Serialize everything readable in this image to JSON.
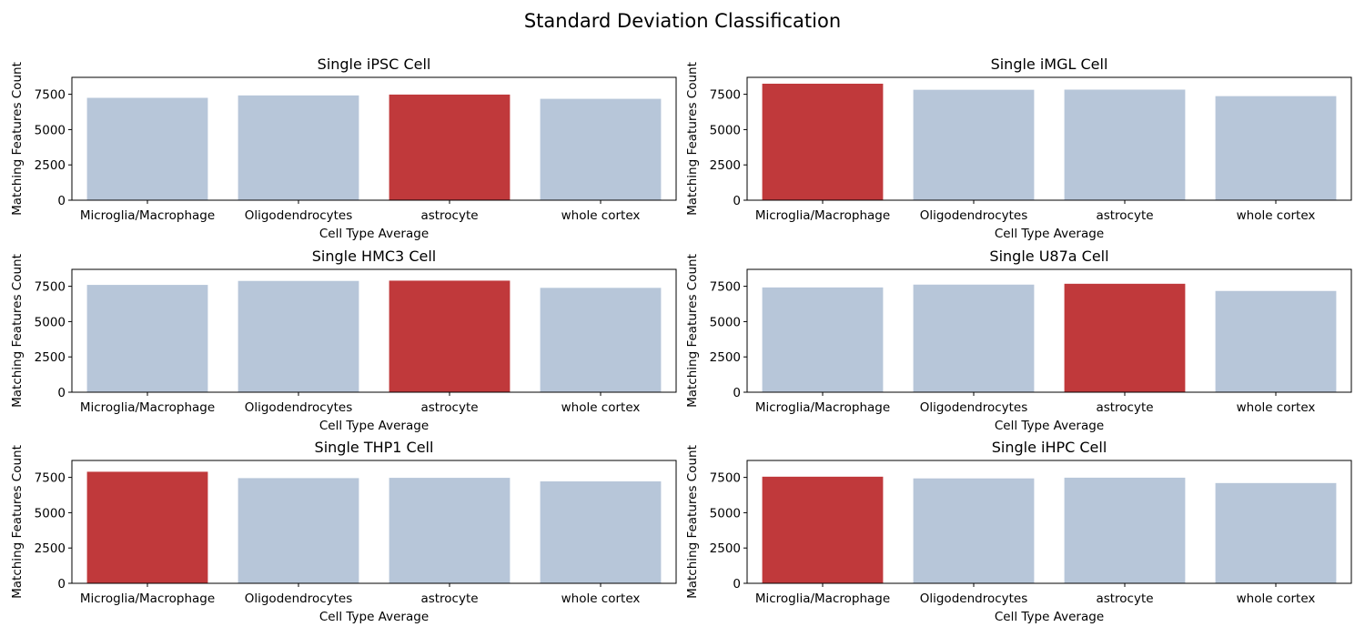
{
  "figure": {
    "suptitle": "Standard Deviation Classification"
  },
  "colors": {
    "default_bar": "#b7c6d9",
    "highlight_bar": "#c0393b"
  },
  "chart_data": [
    {
      "type": "bar",
      "title": "Single iPSC Cell",
      "xlabel": "Cell Type Average",
      "ylabel": "Matching Features Count",
      "categories": [
        "Microglia/Macrophage",
        "Oligodendrocytes",
        "astrocyte",
        "whole cortex"
      ],
      "values": [
        7250,
        7420,
        7480,
        7180
      ],
      "highlight": [
        false,
        false,
        true,
        false
      ],
      "ylim": [
        0,
        8700
      ],
      "yticks": [
        0,
        2500,
        5000,
        7500
      ],
      "ytick_labels": [
        "0",
        "2500",
        "5000",
        "7500"
      ]
    },
    {
      "type": "bar",
      "title": "Single iMGL Cell",
      "xlabel": "Cell Type Average",
      "ylabel": "Matching Features Count",
      "categories": [
        "Microglia/Macrophage",
        "Oligodendrocytes",
        "astrocyte",
        "whole cortex"
      ],
      "values": [
        8250,
        7820,
        7830,
        7370
      ],
      "highlight": [
        true,
        false,
        false,
        false
      ],
      "ylim": [
        0,
        8700
      ],
      "yticks": [
        0,
        2500,
        5000,
        7500
      ],
      "ytick_labels": [
        "0",
        "2500",
        "5000",
        "7500"
      ]
    },
    {
      "type": "bar",
      "title": "Single HMC3 Cell",
      "xlabel": "Cell Type Average",
      "ylabel": "Matching Features Count",
      "categories": [
        "Microglia/Macrophage",
        "Oligodendrocytes",
        "astrocyte",
        "whole cortex"
      ],
      "values": [
        7600,
        7880,
        7900,
        7390
      ],
      "highlight": [
        false,
        false,
        true,
        false
      ],
      "ylim": [
        0,
        8700
      ],
      "yticks": [
        0,
        2500,
        5000,
        7500
      ],
      "ytick_labels": [
        "0",
        "2500",
        "5000",
        "7500"
      ]
    },
    {
      "type": "bar",
      "title": "Single U87a Cell",
      "xlabel": "Cell Type Average",
      "ylabel": "Matching Features Count",
      "categories": [
        "Microglia/Macrophage",
        "Oligodendrocytes",
        "astrocyte",
        "whole cortex"
      ],
      "values": [
        7420,
        7620,
        7680,
        7170
      ],
      "highlight": [
        false,
        false,
        true,
        false
      ],
      "ylim": [
        0,
        8700
      ],
      "yticks": [
        0,
        2500,
        5000,
        7500
      ],
      "ytick_labels": [
        "0",
        "2500",
        "5000",
        "7500"
      ]
    },
    {
      "type": "bar",
      "title": "Single THP1 Cell",
      "xlabel": "Cell Type Average",
      "ylabel": "Matching Features Count",
      "categories": [
        "Microglia/Macrophage",
        "Oligodendrocytes",
        "astrocyte",
        "whole cortex"
      ],
      "values": [
        7900,
        7450,
        7470,
        7220
      ],
      "highlight": [
        true,
        false,
        false,
        false
      ],
      "ylim": [
        0,
        8700
      ],
      "yticks": [
        0,
        2500,
        5000,
        7500
      ],
      "ytick_labels": [
        "0",
        "2500",
        "5000",
        "7500"
      ]
    },
    {
      "type": "bar",
      "title": "Single iHPC Cell",
      "xlabel": "Cell Type Average",
      "ylabel": "Matching Features Count",
      "categories": [
        "Microglia/Macrophage",
        "Oligodendrocytes",
        "astrocyte",
        "whole cortex"
      ],
      "values": [
        7550,
        7430,
        7480,
        7100
      ],
      "highlight": [
        true,
        false,
        false,
        false
      ],
      "ylim": [
        0,
        8700
      ],
      "yticks": [
        0,
        2500,
        5000,
        7500
      ],
      "ytick_labels": [
        "0",
        "2500",
        "5000",
        "7500"
      ]
    }
  ]
}
